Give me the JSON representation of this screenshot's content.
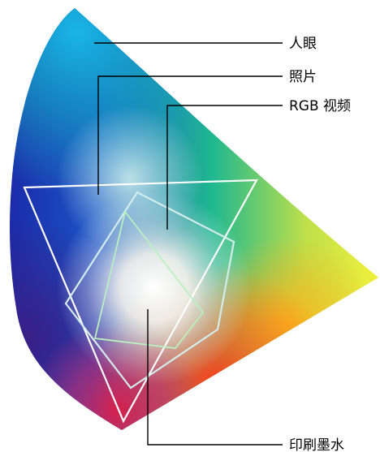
{
  "labels": {
    "human_eye": "人眼",
    "photo": "照片",
    "rgb_video": "RGB 视频",
    "print_ink": "印刷墨水"
  },
  "colors": {
    "human_eye_outline": "#ffffff",
    "photo_outline": "#ffffff",
    "rgb_video_outline": "#d3ecec",
    "print_ink_outline": "#b8f0c0",
    "leader_lines": "#000000"
  }
}
